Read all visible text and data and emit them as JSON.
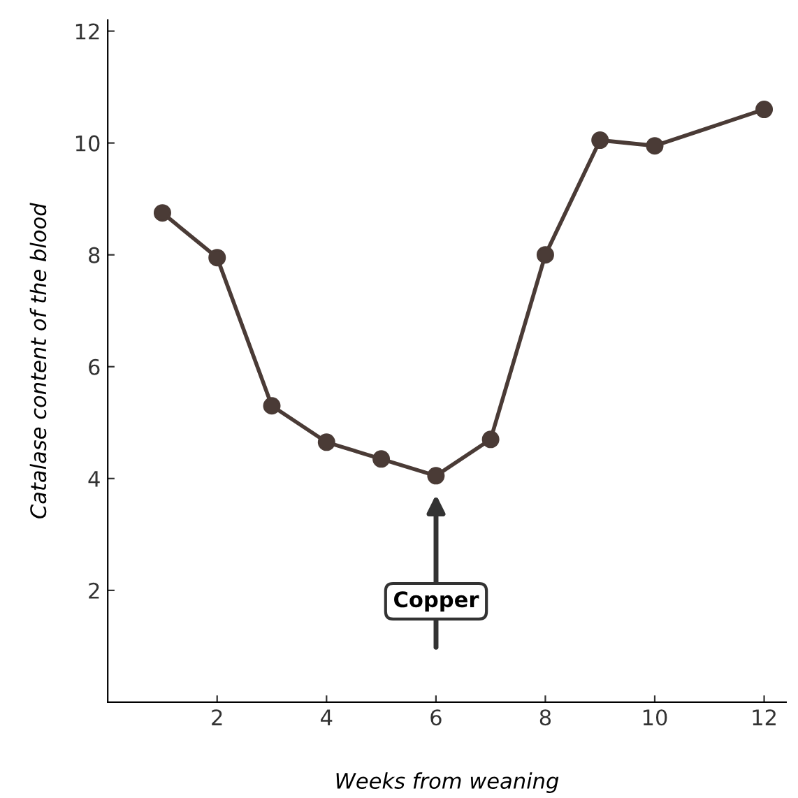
{
  "chart_data": {
    "type": "line",
    "xlabel": "Weeks from weaning",
    "ylabel": "Catalase content of the blood",
    "x": [
      1,
      2,
      3,
      4,
      5,
      6,
      7,
      8,
      9,
      10,
      12
    ],
    "series": [
      {
        "color": "#4a3b36",
        "values": [
          8.75,
          7.95,
          5.3,
          4.65,
          4.35,
          4.05,
          4.7,
          8.0,
          10.05,
          9.95,
          10.6
        ]
      }
    ],
    "xlim": [
      0,
      12.4
    ],
    "ylim": [
      0,
      12.2
    ],
    "xticks": [
      2,
      4,
      6,
      8,
      10,
      12
    ],
    "yticks": [
      2,
      4,
      6,
      8,
      10,
      12
    ],
    "marker": "circle",
    "line_style": "solid",
    "grid": false,
    "legend": false,
    "annotations": [
      "Copper"
    ]
  }
}
